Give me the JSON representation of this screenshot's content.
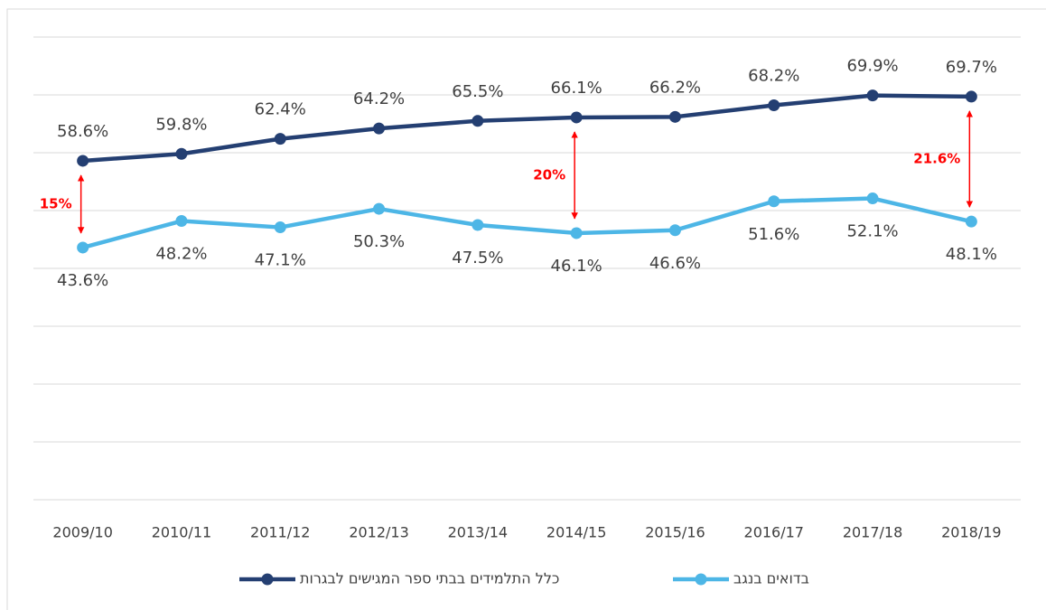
{
  "chart_data": {
    "type": "line",
    "categories": [
      "2009/10",
      "2010/11",
      "2011/12",
      "2012/13",
      "2013/14",
      "2014/15",
      "2015/16",
      "2016/17",
      "2017/18",
      "2018/19"
    ],
    "series": [
      {
        "name": "כלל התלמידים בבתי ספר המגישים לבגרות",
        "color": "#243f72",
        "values": [
          58.6,
          59.8,
          62.4,
          64.2,
          65.5,
          66.1,
          66.2,
          68.2,
          69.9,
          69.7
        ],
        "value_labels": [
          "58.6%",
          "59.8%",
          "62.4%",
          "64.2%",
          "65.5%",
          "66.1%",
          "66.2%",
          "68.2%",
          "69.9%",
          "69.7%"
        ]
      },
      {
        "name": "בדואים בנגב",
        "color": "#4db6e6",
        "values": [
          43.6,
          48.2,
          47.1,
          50.3,
          47.5,
          46.1,
          46.6,
          51.6,
          52.1,
          48.1
        ],
        "value_labels": [
          "43.6%",
          "48.2%",
          "47.1%",
          "50.3%",
          "47.5%",
          "46.1%",
          "46.6%",
          "51.6%",
          "52.1%",
          "48.1%"
        ]
      }
    ],
    "annotations": [
      {
        "label": "15%",
        "category": "2009/10"
      },
      {
        "label": "20%",
        "category": "2014/15"
      },
      {
        "label": "21.6%",
        "category": "2018/19"
      }
    ],
    "annotation_color": "#ff0000",
    "ylim": [
      0,
      80
    ],
    "yticks": [
      0,
      10,
      20,
      30,
      40,
      50,
      60,
      70,
      80
    ],
    "grid": true,
    "legend": "bottom"
  }
}
